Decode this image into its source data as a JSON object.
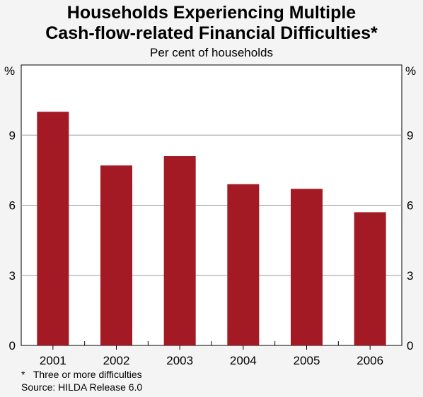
{
  "chart_data": {
    "type": "bar",
    "title_lines": [
      "Households Experiencing Multiple",
      "Cash-flow-related Financial Difficulties*"
    ],
    "subtitle": "Per cent of households",
    "ylabel_left": "%",
    "ylabel_right": "%",
    "categories": [
      "2001",
      "2002",
      "2003",
      "2004",
      "2005",
      "2006"
    ],
    "values": [
      10.0,
      7.7,
      8.1,
      6.9,
      6.7,
      5.7
    ],
    "ylim": [
      0,
      12
    ],
    "yticks": [
      0,
      3,
      6,
      9
    ],
    "grid": true,
    "bar_color": "#a31a24",
    "footnotes": [
      "*   Three or more difficulties",
      "Source: HILDA Release 6.0"
    ]
  }
}
